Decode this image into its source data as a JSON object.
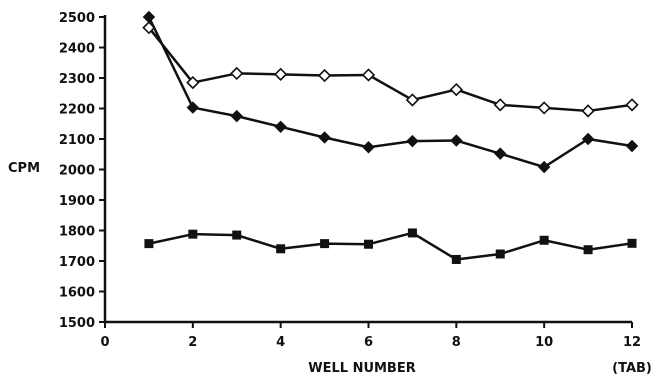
{
  "chart_data": {
    "type": "line",
    "title": "",
    "xlabel": "WELL NUMBER",
    "xlabel_suffix": "(TAB)",
    "ylabel": "CPM",
    "xlim": [
      0,
      12
    ],
    "ylim": [
      1500,
      2500
    ],
    "xticks": [
      0,
      2,
      4,
      6,
      8,
      10,
      12
    ],
    "yticks": [
      1500,
      1600,
      1700,
      1800,
      1900,
      2000,
      2100,
      2200,
      2300,
      2400,
      2500
    ],
    "grid": false,
    "legend": "none",
    "x": [
      1,
      2,
      3,
      4,
      5,
      6,
      7,
      8,
      9,
      10,
      11,
      12
    ],
    "series": [
      {
        "marker": "diamond-open",
        "color": "#111111",
        "values": [
          2465,
          2285,
          2315,
          2312,
          2308,
          2310,
          2228,
          2262,
          2212,
          2202,
          2192,
          2212
        ]
      },
      {
        "marker": "diamond-filled",
        "color": "#111111",
        "values": [
          2500,
          2203,
          2175,
          2140,
          2105,
          2073,
          2093,
          2095,
          2052,
          2008,
          2100,
          2077
        ]
      },
      {
        "marker": "square-filled",
        "color": "#111111",
        "values": [
          1757,
          1788,
          1785,
          1740,
          1757,
          1755,
          1792,
          1705,
          1723,
          1768,
          1737,
          1758
        ]
      }
    ]
  }
}
